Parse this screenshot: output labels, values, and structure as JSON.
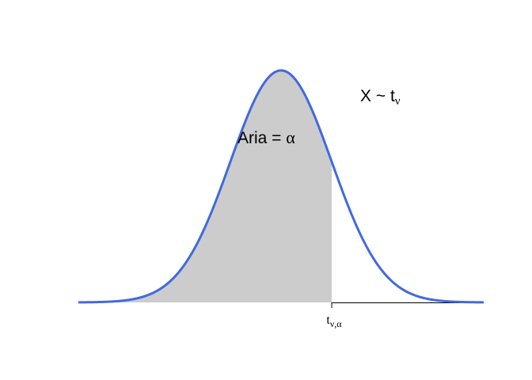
{
  "chart_data": {
    "type": "area",
    "distribution": "Student t",
    "xlim": [
      -4,
      4
    ],
    "ylim": [
      0,
      0.3989
    ],
    "alpha": 0.84,
    "critical_value": 1,
    "curve_color": "#4169E1",
    "fill_color": "#CCCCCC",
    "annotations": {
      "area_label_main": "Aria = ",
      "area_label_symbol": "α",
      "dist_label_main": "X ~ t",
      "dist_label_sub": "ν"
    },
    "ticks": [
      {
        "value": 1,
        "label_main": "t",
        "label_sub": "ν,α"
      }
    ]
  }
}
